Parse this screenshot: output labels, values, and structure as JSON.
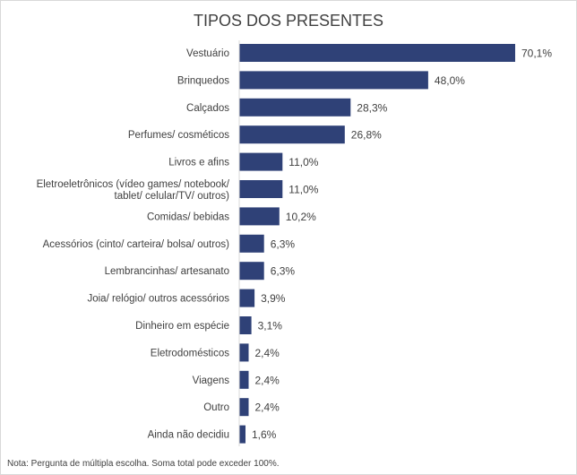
{
  "chart_data": {
    "type": "bar",
    "orientation": "horizontal",
    "title": "TIPOS DOS PRESENTES",
    "categories": [
      "Vestuário",
      "Brinquedos",
      "Calçados",
      "Perfumes/ cosméticos",
      "Livros e afins",
      "Eletroeletrônicos (vídeo games/ notebook/ tablet/ celular/TV/ outros)",
      "Comidas/ bebidas",
      "Acessórios (cinto/ carteira/ bolsa/ outros)",
      "Lembrancinhas/ artesanato",
      "Joia/ relógio/ outros acessórios",
      "Dinheiro em espécie",
      "Eletrodomésticos",
      "Viagens",
      "Outro",
      "Ainda não decidiu"
    ],
    "values": [
      70.1,
      48.0,
      28.3,
      26.8,
      11.0,
      11.0,
      10.2,
      6.3,
      6.3,
      3.9,
      3.1,
      2.4,
      2.4,
      2.4,
      1.6
    ],
    "value_labels": [
      "70,1%",
      "48,0%",
      "28,3%",
      "26,8%",
      "11,0%",
      "11,0%",
      "10,2%",
      "6,3%",
      "6,3%",
      "3,9%",
      "3,1%",
      "2,4%",
      "2,4%",
      "2,4%",
      "1,6%"
    ],
    "xlim": [
      0,
      70.1
    ],
    "bar_color": "#2f4177",
    "grid": false,
    "legend": "none",
    "note": "Nota: Pergunta de múltipla escolha. Soma total pode exceder 100%."
  }
}
